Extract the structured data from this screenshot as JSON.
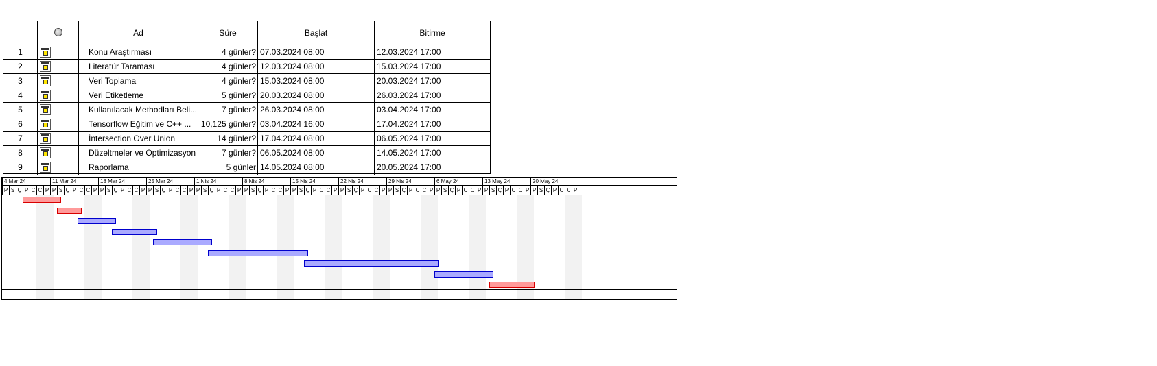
{
  "table": {
    "headers": {
      "id": "",
      "info": "",
      "name": "Ad",
      "duration": "Süre",
      "start": "Başlat",
      "finish": "Bitirme"
    },
    "rows": [
      {
        "id": "1",
        "name": "Konu Araştırması",
        "duration": "4 günler?",
        "start": "07.03.2024 08:00",
        "finish": "12.03.2024 17:00"
      },
      {
        "id": "2",
        "name": "Literatür Taraması",
        "duration": "4 günler?",
        "start": "12.03.2024 08:00",
        "finish": "15.03.2024 17:00"
      },
      {
        "id": "3",
        "name": "Veri Toplama",
        "duration": "4 günler?",
        "start": "15.03.2024 08:00",
        "finish": "20.03.2024 17:00"
      },
      {
        "id": "4",
        "name": "Veri Etiketleme",
        "duration": "5 günler?",
        "start": "20.03.2024 08:00",
        "finish": "26.03.2024 17:00"
      },
      {
        "id": "5",
        "name": "Kullanılacak Methodları Beli...",
        "duration": "7 günler?",
        "start": "26.03.2024 08:00",
        "finish": "03.04.2024 17:00"
      },
      {
        "id": "6",
        "name": "Tensorflow Eğitim ve C++ ...",
        "duration": "10,125 günler?",
        "start": "03.04.2024 16:00",
        "finish": "17.04.2024 17:00"
      },
      {
        "id": "7",
        "name": "İntersection Over Union",
        "duration": "14 günler?",
        "start": "17.04.2024 08:00",
        "finish": "06.05.2024 17:00"
      },
      {
        "id": "8",
        "name": "Düzeltmeler ve Optimizasyon",
        "duration": "7 günler?",
        "start": "06.05.2024 08:00",
        "finish": "14.05.2024 17:00"
      },
      {
        "id": "9",
        "name": "Raporlama",
        "duration": "5 günler",
        "start": "14.05.2024 08:00",
        "finish": "20.05.2024 17:00"
      }
    ]
  },
  "gantt": {
    "weeks": [
      "4 Mar 24",
      "11 Mar 24",
      "18 Mar 24",
      "25 Mar 24",
      "1 Nis 24",
      "8 Nis 24",
      "15 Nis 24",
      "22 Nis 24",
      "29 Nis 24",
      "6 May 24",
      "13 May 24",
      "20 May 24"
    ],
    "day_letters": [
      "P",
      "S",
      "Ç",
      "P",
      "C",
      "C",
      "P"
    ],
    "timeline_start": "2024-03-04",
    "bars": [
      {
        "task": "1",
        "start": "2024-03-07",
        "end": "2024-03-12",
        "critical": true
      },
      {
        "task": "2",
        "start": "2024-03-12",
        "end": "2024-03-15",
        "critical": true
      },
      {
        "task": "3",
        "start": "2024-03-15",
        "end": "2024-03-20",
        "critical": false
      },
      {
        "task": "4",
        "start": "2024-03-20",
        "end": "2024-03-26",
        "critical": false
      },
      {
        "task": "5",
        "start": "2024-03-26",
        "end": "2024-04-03",
        "critical": false
      },
      {
        "task": "6",
        "start": "2024-04-03",
        "end": "2024-04-17",
        "critical": false
      },
      {
        "task": "7",
        "start": "2024-04-17",
        "end": "2024-05-06",
        "critical": false
      },
      {
        "task": "8",
        "start": "2024-05-06",
        "end": "2024-05-14",
        "critical": false
      },
      {
        "task": "9",
        "start": "2024-05-14",
        "end": "2024-05-20",
        "critical": true
      }
    ],
    "colors": {
      "normal_fill": "#aaaaff",
      "normal_border": "#0000cc",
      "critical_fill": "#ff9a9a",
      "critical_border": "#d80000"
    }
  }
}
